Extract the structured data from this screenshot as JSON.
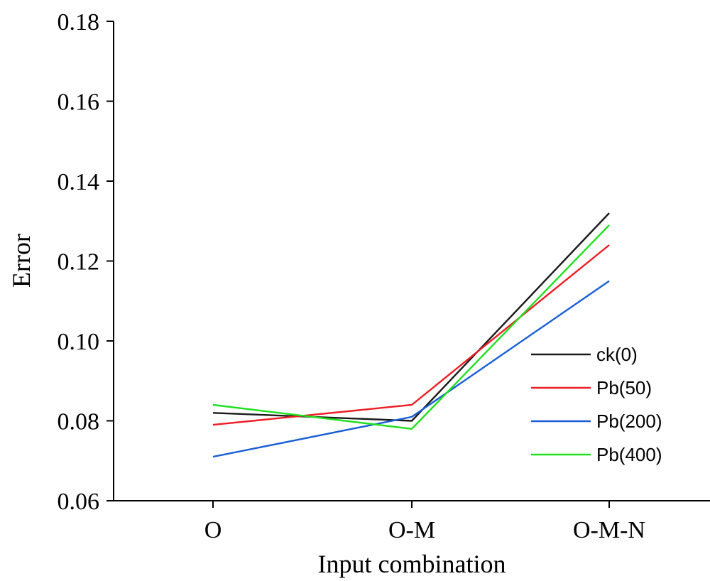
{
  "chart_data": {
    "type": "line",
    "title": "",
    "xlabel": "Input combination",
    "ylabel": "Error",
    "categories": [
      "O",
      "O-M",
      "O-M-N"
    ],
    "ylim": [
      0.06,
      0.18
    ],
    "yticks": [
      "0.06",
      "0.08",
      "0.10",
      "0.12",
      "0.14",
      "0.16",
      "0.18"
    ],
    "grid": false,
    "legend_position": "right",
    "series": [
      {
        "name": "ck(0)",
        "color": "#1a1a1a",
        "values": [
          0.082,
          0.08,
          0.132
        ]
      },
      {
        "name": "Pb(50)",
        "color": "#ee1c24",
        "values": [
          0.079,
          0.084,
          0.124
        ]
      },
      {
        "name": "Pb(200)",
        "color": "#1a5fd6",
        "values": [
          0.071,
          0.081,
          0.115
        ]
      },
      {
        "name": "Pb(400)",
        "color": "#1ee01e",
        "values": [
          0.084,
          0.078,
          0.129
        ]
      }
    ]
  }
}
